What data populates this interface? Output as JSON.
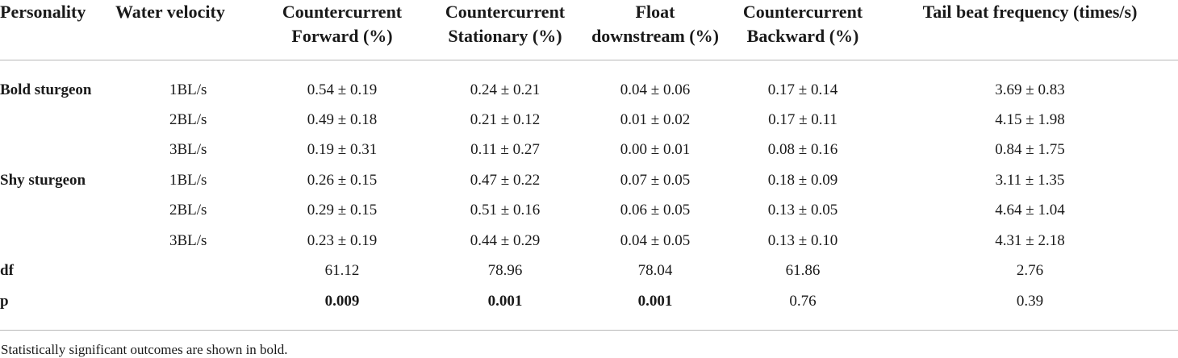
{
  "headers": [
    "Personality",
    "Water velocity",
    "Countercurrent Forward (%)",
    "Countercurrent Stationary (%)",
    "Float downstream (%)",
    "Countercurrent Backward (%)",
    "Tail beat frequency (times/s)"
  ],
  "rows": [
    {
      "group": "Bold sturgeon",
      "velocity": "1BL/s",
      "values": [
        "0.54 ± 0.19",
        "0.24 ± 0.21",
        "0.04 ± 0.06",
        "0.17 ± 0.14",
        "3.69 ± 0.83"
      ]
    },
    {
      "group": "",
      "velocity": "2BL/s",
      "values": [
        "0.49 ± 0.18",
        "0.21 ± 0.12",
        "0.01 ± 0.02",
        "0.17 ± 0.11",
        "4.15 ± 1.98"
      ]
    },
    {
      "group": "",
      "velocity": "3BL/s",
      "values": [
        "0.19 ± 0.31",
        "0.11 ± 0.27",
        "0.00 ± 0.01",
        "0.08 ± 0.16",
        "0.84 ± 1.75"
      ]
    },
    {
      "group": "Shy sturgeon",
      "velocity": "1BL/s",
      "values": [
        "0.26 ± 0.15",
        "0.47 ± 0.22",
        "0.07 ± 0.05",
        "0.18 ± 0.09",
        "3.11 ± 1.35"
      ]
    },
    {
      "group": "",
      "velocity": "2BL/s",
      "values": [
        "0.29 ± 0.15",
        "0.51 ± 0.16",
        "0.06 ± 0.05",
        "0.13 ± 0.05",
        "4.64 ± 1.04"
      ]
    },
    {
      "group": "",
      "velocity": "3BL/s",
      "values": [
        "0.23 ± 0.19",
        "0.44 ± 0.29",
        "0.04 ± 0.05",
        "0.13 ± 0.10",
        "4.31 ± 2.18"
      ]
    },
    {
      "group": "df",
      "velocity": "",
      "values": [
        "61.12",
        "78.96",
        "78.04",
        "61.86",
        "2.76"
      ]
    },
    {
      "group": "p",
      "velocity": "",
      "values": [
        "0.009",
        "0.001",
        "0.001",
        "0.76",
        "0.39"
      ],
      "bold": [
        true,
        true,
        true,
        false,
        false
      ]
    }
  ],
  "footnote": "Statistically significant outcomes are shown in bold."
}
